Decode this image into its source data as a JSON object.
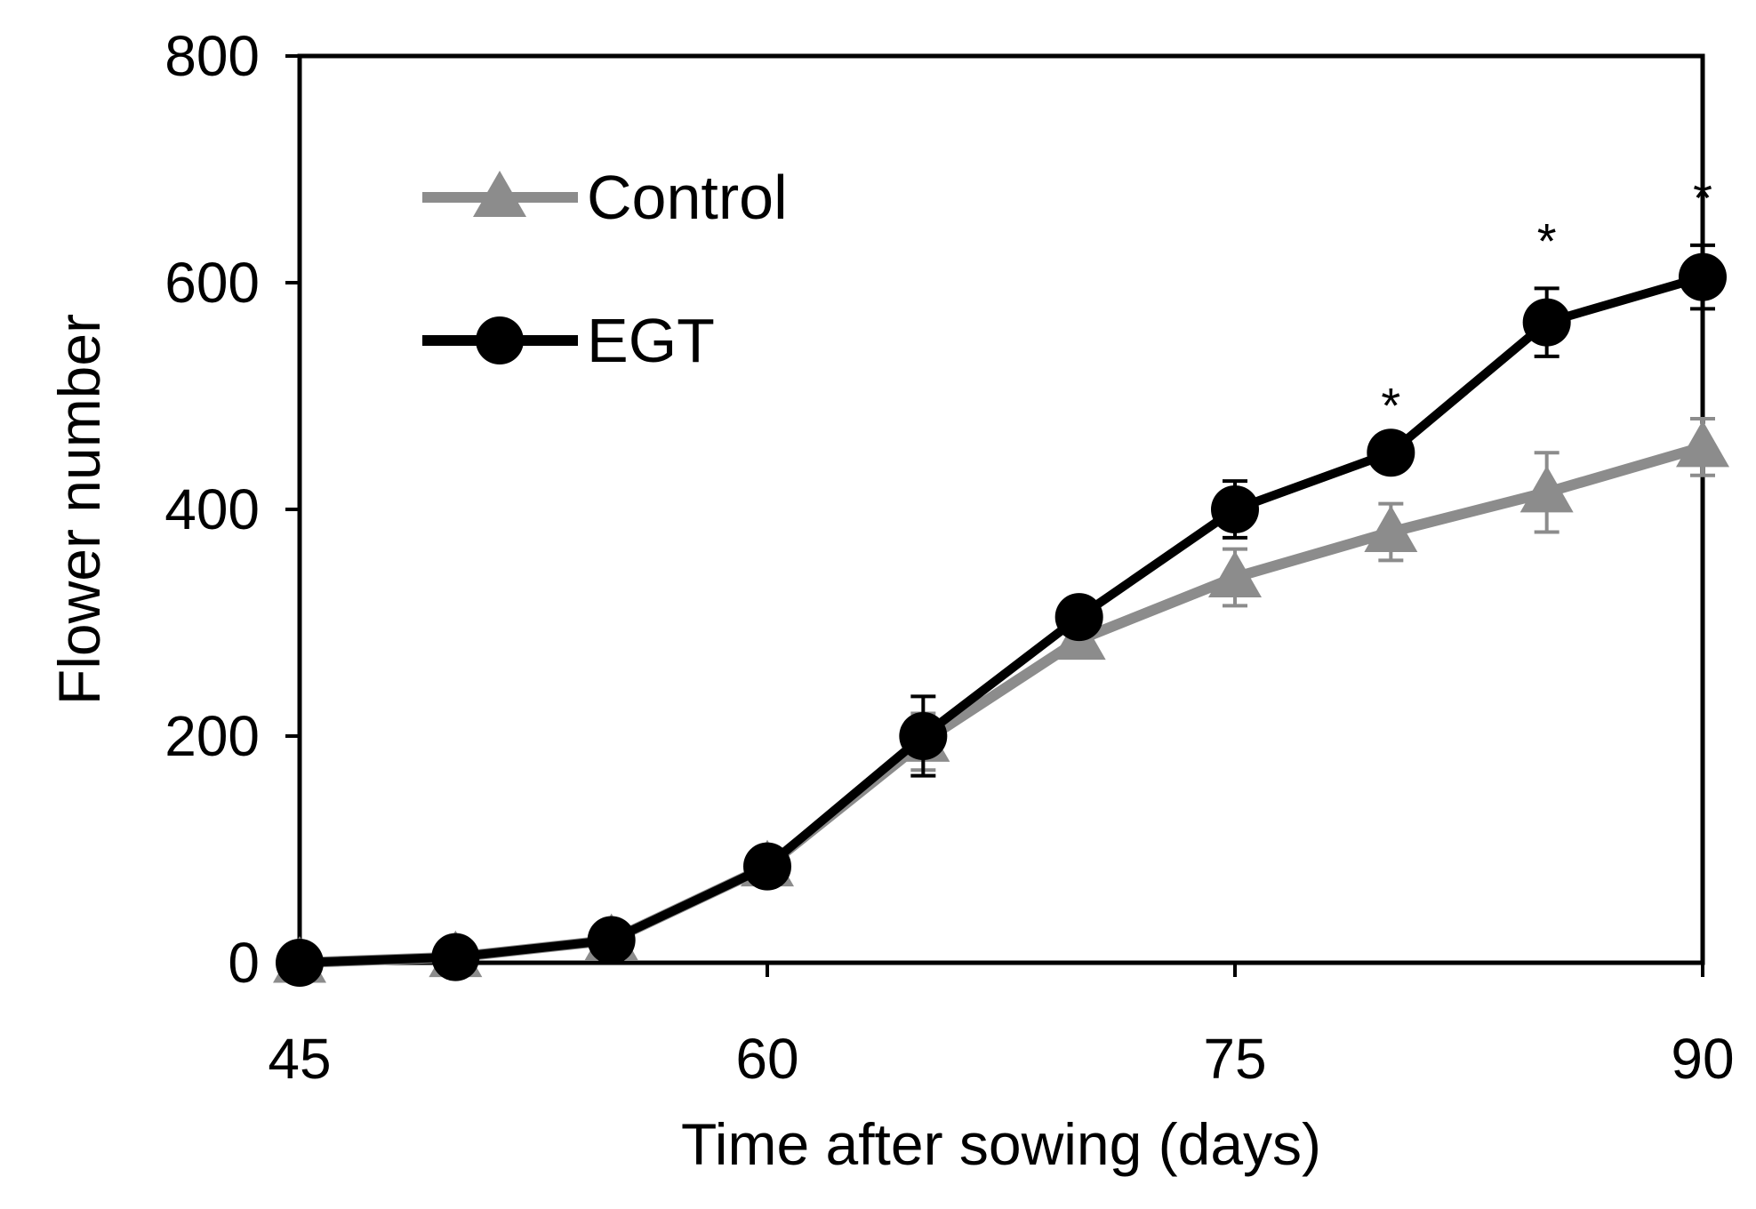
{
  "chart_data": {
    "type": "line",
    "title": "",
    "xlabel": "Time after sowing (days)",
    "ylabel": "Flower number",
    "xlim": [
      45,
      90
    ],
    "ylim": [
      0,
      800
    ],
    "xticks": [
      45,
      60,
      75,
      90
    ],
    "yticks": [
      0,
      200,
      400,
      600,
      800
    ],
    "grid": false,
    "legend_position": "top-left",
    "x": [
      45,
      50,
      55,
      60,
      65,
      70,
      75,
      80,
      85,
      90
    ],
    "series": [
      {
        "name": "Control",
        "color": "#8c8c8c",
        "marker": "triangle",
        "values": [
          0,
          5,
          20,
          85,
          195,
          285,
          340,
          380,
          415,
          455
        ],
        "errors": [
          0,
          0,
          0,
          0,
          25,
          0,
          25,
          25,
          35,
          25
        ]
      },
      {
        "name": "EGT",
        "color": "#000000",
        "marker": "circle",
        "values": [
          0,
          5,
          20,
          85,
          200,
          305,
          400,
          450,
          565,
          605
        ],
        "errors": [
          0,
          0,
          0,
          0,
          35,
          0,
          25,
          0,
          30,
          28
        ]
      }
    ],
    "significance": [
      {
        "x": 80,
        "y": 450,
        "label": "*"
      },
      {
        "x": 85,
        "y": 565,
        "label": "*"
      },
      {
        "x": 90,
        "y": 605,
        "label": "*"
      }
    ]
  }
}
